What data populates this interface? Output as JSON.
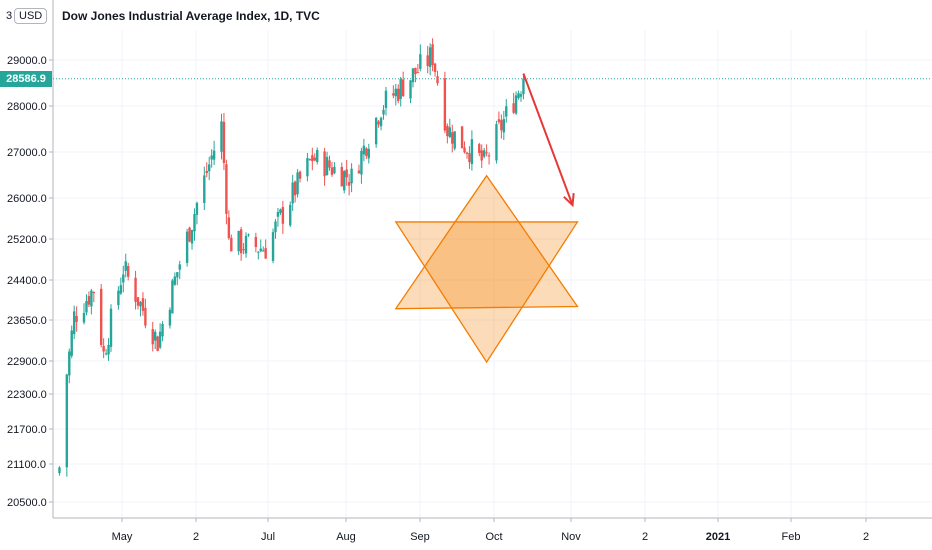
{
  "header": {
    "title": "Dow Jones Industrial Average Index, 1D, TVC",
    "currency_badge": "USD",
    "scale_badge": "3"
  },
  "last_price_label": "28586.9",
  "colors": {
    "up": "#26a69a",
    "down": "#ef5350",
    "accent": "#26a69a",
    "arrow": "#e53935",
    "star": "#f57c00"
  },
  "chart_data": {
    "type": "candlestick",
    "title": "Dow Jones Industrial Average Index, 1D, TVC",
    "y_axis": {
      "ticks": [
        "29000.0",
        "28000.0",
        "27000.0",
        "26000.0",
        "25200.0",
        "24400.0",
        "23650.0",
        "22900.0",
        "22300.0",
        "21700.0",
        "21100.0",
        "20500.0"
      ],
      "scale": "log",
      "position": "left",
      "range": [
        20150,
        29650
      ]
    },
    "x_axis": {
      "ticks": [
        {
          "label": "May",
          "bold": false
        },
        {
          "label": "2",
          "bold": false
        },
        {
          "label": "Jul",
          "bold": false
        },
        {
          "label": "Aug",
          "bold": false
        },
        {
          "label": "Sep",
          "bold": false
        },
        {
          "label": "Oct",
          "bold": false
        },
        {
          "label": "Nov",
          "bold": false
        },
        {
          "label": "2",
          "bold": false
        },
        {
          "label": "2021",
          "bold": true
        },
        {
          "label": "Feb",
          "bold": false
        },
        {
          "label": "2",
          "bold": false
        }
      ],
      "range": [
        "2020-04-02",
        "2021-03-20"
      ]
    },
    "last_price": 28586.9,
    "series_key_points": [
      {
        "date": "2020-04-03",
        "close": 21050
      },
      {
        "date": "2020-04-06",
        "close": 22680
      },
      {
        "date": "2020-04-09",
        "close": 23720
      },
      {
        "date": "2020-04-17",
        "close": 24240
      },
      {
        "date": "2020-04-21",
        "close": 23020
      },
      {
        "date": "2020-04-29",
        "close": 24630
      },
      {
        "date": "2020-05-13",
        "close": 23250
      },
      {
        "date": "2020-05-27",
        "close": 25550
      },
      {
        "date": "2020-06-08",
        "close": 27570
      },
      {
        "date": "2020-06-11",
        "close": 25130
      },
      {
        "date": "2020-06-26",
        "close": 25020
      },
      {
        "date": "2020-07-15",
        "close": 26870
      },
      {
        "date": "2020-07-31",
        "close": 26430
      },
      {
        "date": "2020-08-12",
        "close": 27980
      },
      {
        "date": "2020-09-02",
        "close": 29100
      },
      {
        "date": "2020-09-08",
        "close": 27500
      },
      {
        "date": "2020-09-23",
        "close": 26760
      },
      {
        "date": "2020-10-09",
        "close": 28590
      }
    ],
    "annotations": [
      {
        "type": "arrow",
        "from": [
          "2020-10-09",
          28700
        ],
        "to": [
          "2020-10-29",
          25860
        ],
        "color": "#e53935"
      },
      {
        "type": "hexagram",
        "vertices": [
          [
            "2020-09-24",
            26480
          ],
          [
            "2020-10-31",
            25530
          ],
          [
            "2020-10-31",
            23900
          ],
          [
            "2020-09-24",
            22880
          ],
          [
            "2020-08-18",
            23860
          ],
          [
            "2020-08-18",
            25530
          ]
        ],
        "color": "#f57c00"
      }
    ]
  }
}
